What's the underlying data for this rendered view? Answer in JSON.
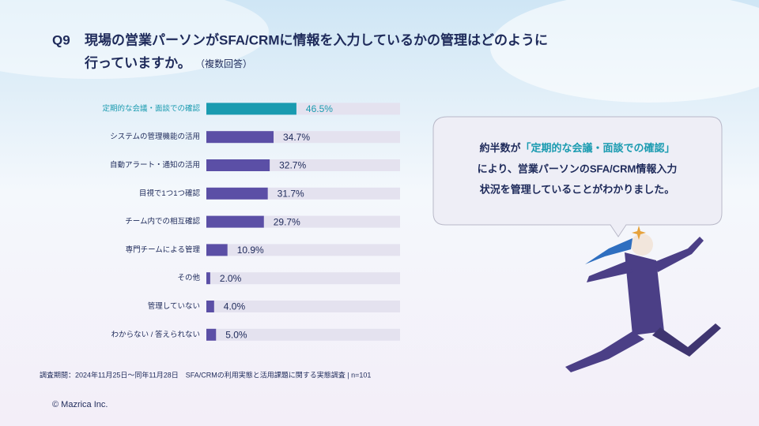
{
  "chart_data": {
    "type": "hbar",
    "question": "Q9",
    "title_line1": "現場の営業パーソンがSFA/CRMに情報を入力しているかの管理はどのように",
    "title_line2": "行っていますか。",
    "title_note": "（複数回答）",
    "categories": [
      "定期的な会議・面談での確認",
      "システムの管理機能の活用",
      "自動アラート・通知の活用",
      "目視で1つ1つ確認",
      "チーム内での相互確認",
      "専門チームによる管理",
      "その他",
      "管理していない",
      "わからない / 答えられない"
    ],
    "values": [
      46.5,
      34.7,
      32.7,
      31.7,
      29.7,
      10.9,
      2.0,
      4.0,
      5.0
    ],
    "value_labels": [
      "46.5%",
      "34.7%",
      "32.7%",
      "31.7%",
      "29.7%",
      "10.9%",
      "2.0%",
      "4.0%",
      "5.0%"
    ],
    "colors": [
      "#1a9bb0",
      "#5b4fa6",
      "#5b4fa6",
      "#5b4fa6",
      "#5b4fa6",
      "#5b4fa6",
      "#5b4fa6",
      "#5b4fa6",
      "#5b4fa6"
    ],
    "track_color": "#e4e2ef",
    "xlim": [
      0,
      100
    ],
    "callout": {
      "lead": "約半数が",
      "highlight": "「定期的な会議・面談での確認」",
      "line2": "により、営業パーソンのSFA/CRM情報入力",
      "line3": "状況を管理していることがわかりました。"
    },
    "footnote": "調査期間：2024年11月25日～同年11月28日　SFA/CRMの利用実態と活用課題に関する実態調査 | n=101",
    "copyright": "© Mazrica Inc."
  }
}
